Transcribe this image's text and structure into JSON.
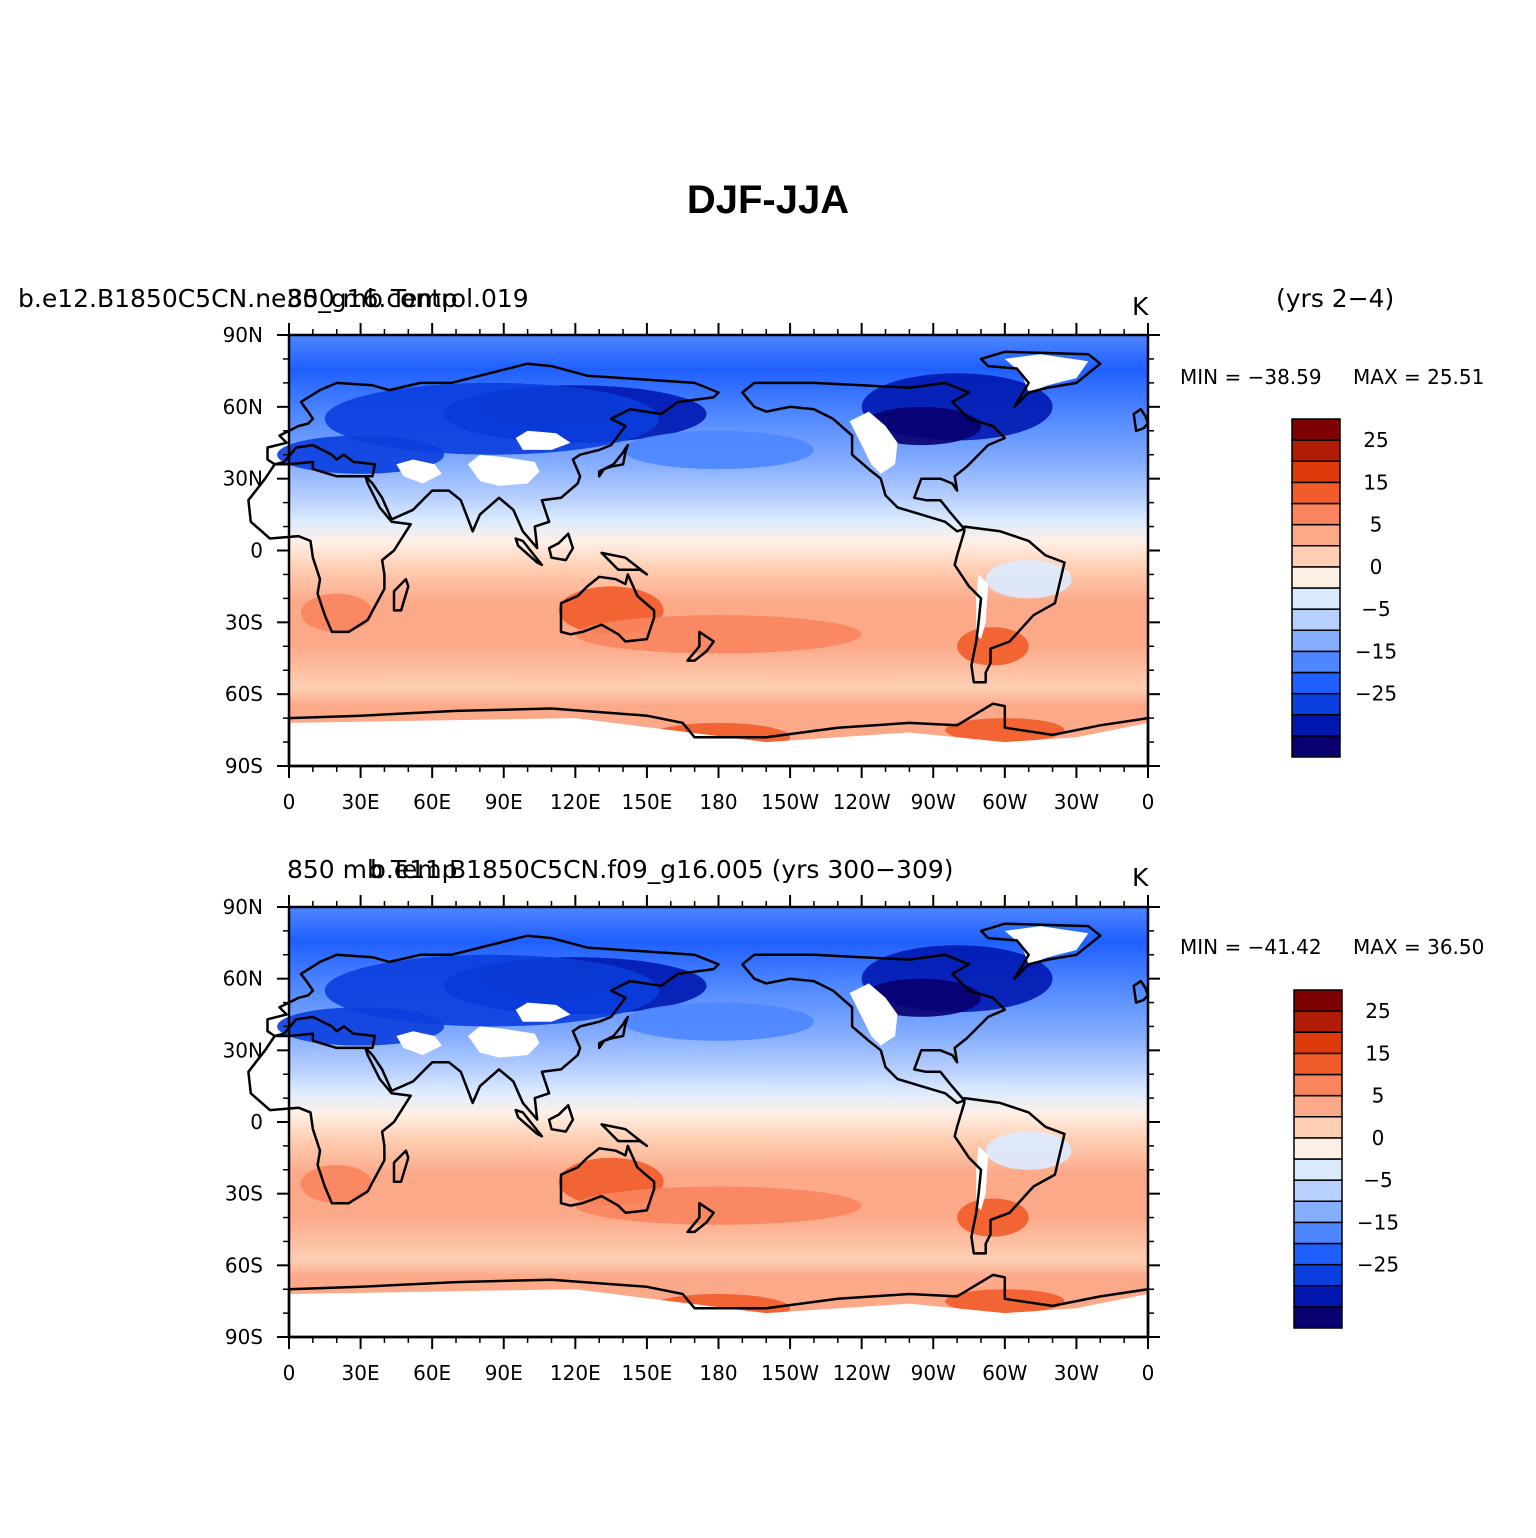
{
  "figure": {
    "title": "DJF-JJA"
  },
  "colors": {
    "colorbar": [
      "#08006f",
      "#0018b0",
      "#0a3ede",
      "#1f5fff",
      "#4d86ff",
      "#86aeff",
      "#b8d0ff",
      "#dbebff",
      "#fff0e6",
      "#ffcfb3",
      "#fca98a",
      "#fa845d",
      "#f15c2a",
      "#df3a0c",
      "#b01c04",
      "#7e0202"
    ],
    "land_mask": "#ffffff",
    "coast": "#000000"
  },
  "panels": [
    {
      "id": "top",
      "left_label_a": "b.e12.B1850C5CN.ne30_g16.control.019",
      "left_label_b": "850 mb Temp",
      "right_label": "(yrs 2−4)",
      "units": "K",
      "min_label": "MIN = −38.59",
      "max_label": "MAX = 25.51"
    },
    {
      "id": "bottom",
      "left_label_a": "850 mb Temp",
      "left_label_b": "b.e11.B1850C5CN.f09_g16.005 (yrs 300−309)",
      "right_label": "",
      "units": "K",
      "min_label": "MIN = −41.42",
      "max_label": "MAX = 36.50"
    }
  ],
  "chart_data": {
    "type": "heatmap",
    "projection": "cylindrical-equidistant",
    "variable": "850 mb Temp",
    "units": "K",
    "x_ticks": [
      "0",
      "30E",
      "60E",
      "90E",
      "120E",
      "150E",
      "180",
      "150W",
      "120W",
      "90W",
      "60W",
      "30W",
      "0"
    ],
    "x_lon": [
      0,
      30,
      60,
      90,
      120,
      150,
      180,
      210,
      240,
      270,
      300,
      330,
      360
    ],
    "y_ticks": [
      "90N",
      "60N",
      "30N",
      "0",
      "30S",
      "60S",
      "90S"
    ],
    "y_lat": [
      90,
      60,
      30,
      0,
      -30,
      -60,
      -90
    ],
    "contour_levels": [
      -35,
      -30,
      -25,
      -20,
      -15,
      -10,
      -5,
      -2.5,
      0,
      2.5,
      5,
      10,
      15,
      20,
      25,
      30
    ],
    "colorbar_labels": [
      "25",
      "15",
      "5",
      "0",
      "−5",
      "−15",
      "−25"
    ],
    "colorbar_label_levels": [
      25,
      15,
      5,
      0,
      -5,
      -15,
      -25
    ],
    "series": [
      {
        "name": "b.e12.B1850C5CN.ne30_g16.control.019 (yrs 2−4)",
        "min": -38.59,
        "max": 25.51
      },
      {
        "name": "b.e11.B1850C5CN.f09_g16.005 (yrs 300−309)",
        "min": -41.42,
        "max": 36.5
      }
    ]
  }
}
